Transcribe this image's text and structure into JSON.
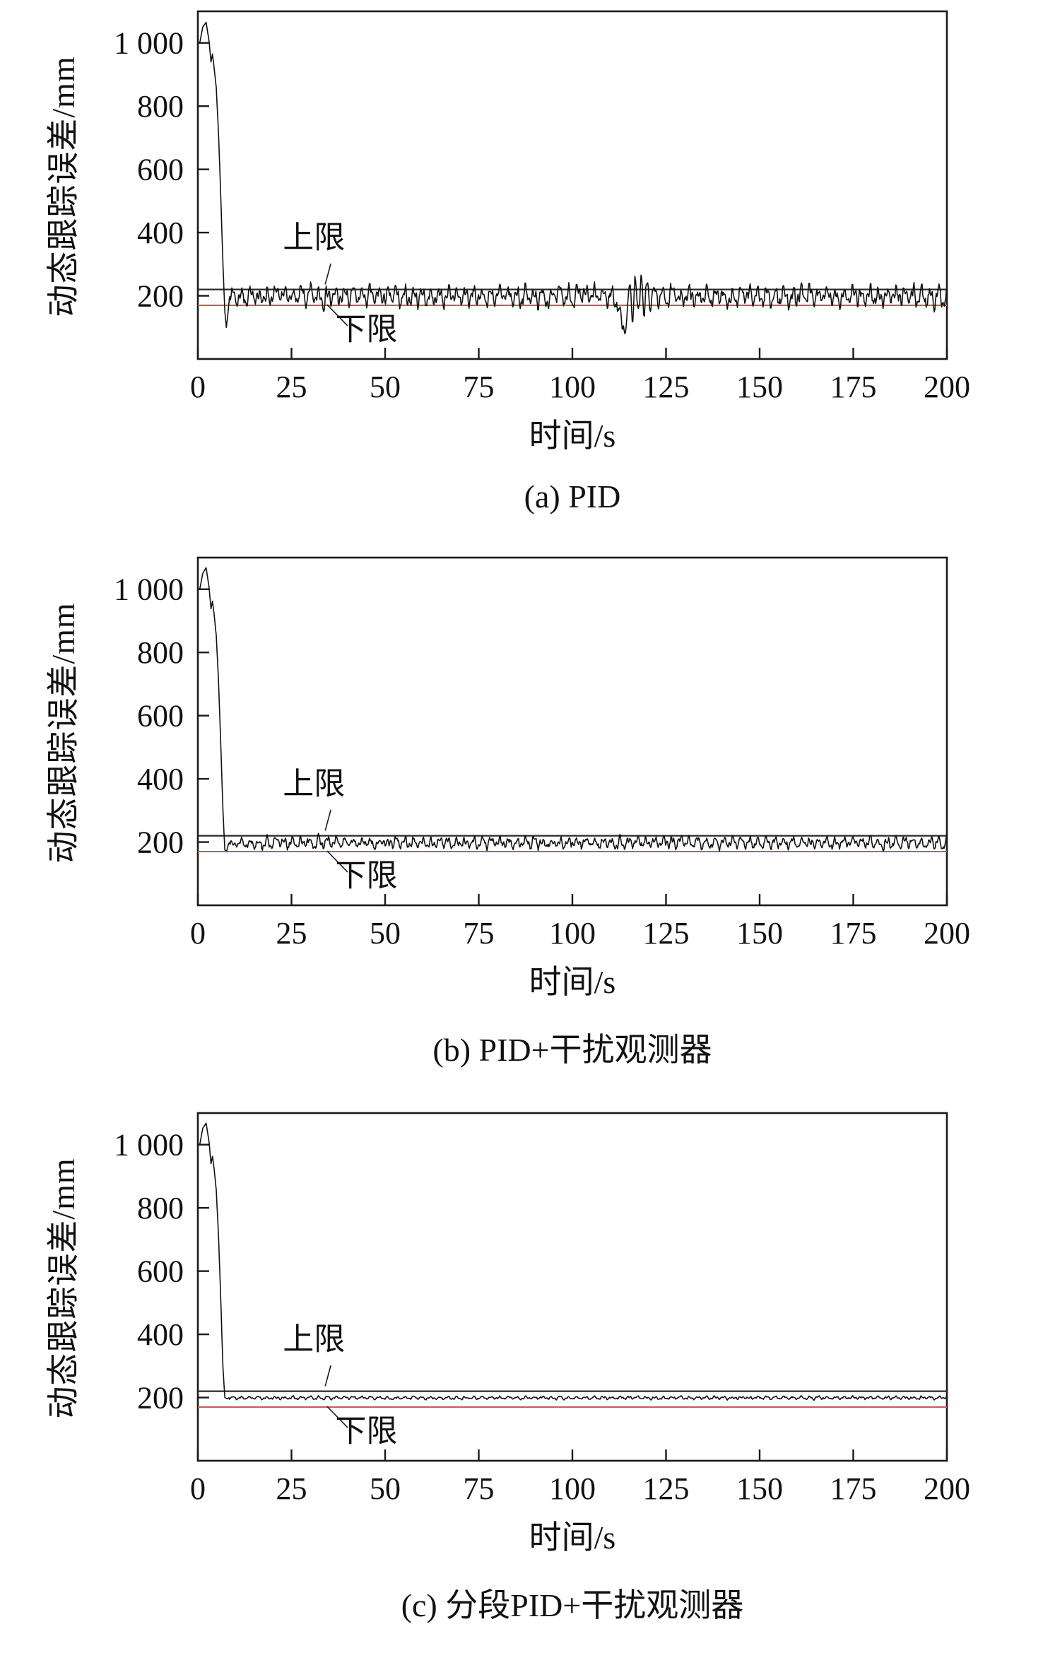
{
  "colors": {
    "axis": "#1a1a1a",
    "signal": "#111111",
    "upper_limit": "#2a2a2a",
    "lower_limit": "#d9534f"
  },
  "chart_data": [
    {
      "id": "a",
      "type": "line",
      "caption": "(a) PID",
      "xlabel": "时间/s",
      "ylabel": "动态跟踪误差/mm",
      "xlim": [
        0,
        200
      ],
      "ylim": [
        0,
        1100
      ],
      "grid": false,
      "legend": "none",
      "x_ticks": [
        {
          "value": 0,
          "label": "0"
        },
        {
          "value": 25,
          "label": "25"
        },
        {
          "value": 50,
          "label": "50"
        },
        {
          "value": 75,
          "label": "75"
        },
        {
          "value": 100,
          "label": "100"
        },
        {
          "value": 125,
          "label": "125"
        },
        {
          "value": 150,
          "label": "150"
        },
        {
          "value": 175,
          "label": "175"
        },
        {
          "value": 200,
          "label": "200"
        }
      ],
      "y_ticks": [
        {
          "value": 200,
          "label": "200"
        },
        {
          "value": 400,
          "label": "400"
        },
        {
          "value": 600,
          "label": "600"
        },
        {
          "value": 800,
          "label": "800"
        },
        {
          "value": 1000,
          "label": "1 000"
        }
      ],
      "upper_limit": {
        "value": 220,
        "label": "上限"
      },
      "lower_limit": {
        "value": 170,
        "label": "下限"
      },
      "upper_annotation": {
        "label": "上限",
        "tx": 31,
        "tv": 352,
        "leader": [
          [
            35.5,
            302
          ],
          [
            34,
            236
          ]
        ]
      },
      "lower_annotation": {
        "label": "下限",
        "tx": 45,
        "tv": 62,
        "leader": [
          [
            40,
            105
          ],
          [
            34.5,
            172
          ]
        ]
      },
      "series": {
        "name": "动态跟踪误差",
        "transient": [
          [
            0.5,
            1000
          ],
          [
            1.3,
            1050
          ],
          [
            2.2,
            1065
          ],
          [
            3.0,
            1005
          ],
          [
            3.5,
            940
          ],
          [
            3.9,
            965
          ],
          [
            4.3,
            925
          ],
          [
            4.9,
            860
          ],
          [
            5.5,
            720
          ],
          [
            6.1,
            520
          ],
          [
            6.7,
            300
          ],
          [
            7.2,
            150
          ],
          [
            7.6,
            100
          ],
          [
            8.0,
            140
          ],
          [
            8.4,
            190
          ],
          [
            8.7,
            205
          ]
        ],
        "steady": {
          "start_t": 8.7,
          "mean": 198,
          "amplitude": 38,
          "seed": 7,
          "disturbance": {
            "center": 118,
            "dip_center": 113.5,
            "dip_depth": 95,
            "burst_amp": 70,
            "width": 4
          }
        }
      }
    },
    {
      "id": "b",
      "type": "line",
      "caption": "(b) PID+干扰观测器",
      "xlabel": "时间/s",
      "ylabel": "动态跟踪误差/mm",
      "xlim": [
        0,
        200
      ],
      "ylim": [
        0,
        1100
      ],
      "grid": false,
      "legend": "none",
      "x_ticks": [
        {
          "value": 0,
          "label": "0"
        },
        {
          "value": 25,
          "label": "25"
        },
        {
          "value": 50,
          "label": "50"
        },
        {
          "value": 75,
          "label": "75"
        },
        {
          "value": 100,
          "label": "100"
        },
        {
          "value": 125,
          "label": "125"
        },
        {
          "value": 150,
          "label": "150"
        },
        {
          "value": 175,
          "label": "175"
        },
        {
          "value": 200,
          "label": "200"
        }
      ],
      "y_ticks": [
        {
          "value": 200,
          "label": "200"
        },
        {
          "value": 400,
          "label": "400"
        },
        {
          "value": 600,
          "label": "600"
        },
        {
          "value": 800,
          "label": "800"
        },
        {
          "value": 1000,
          "label": "1 000"
        }
      ],
      "upper_limit": {
        "value": 220,
        "label": "上限"
      },
      "lower_limit": {
        "value": 170,
        "label": "下限"
      },
      "upper_annotation": {
        "label": "上限",
        "tx": 31,
        "tv": 352,
        "leader": [
          [
            35.5,
            302
          ],
          [
            34,
            236
          ]
        ]
      },
      "lower_annotation": {
        "label": "下限",
        "tx": 45,
        "tv": 62,
        "leader": [
          [
            40,
            105
          ],
          [
            34.5,
            172
          ]
        ]
      },
      "series": {
        "name": "动态跟踪误差",
        "transient": [
          [
            0.5,
            1000
          ],
          [
            1.3,
            1050
          ],
          [
            2.2,
            1068
          ],
          [
            3.0,
            1005
          ],
          [
            3.5,
            938
          ],
          [
            3.9,
            962
          ],
          [
            4.3,
            925
          ],
          [
            4.9,
            855
          ],
          [
            5.5,
            715
          ],
          [
            6.1,
            515
          ],
          [
            6.7,
            300
          ],
          [
            7.2,
            175
          ],
          [
            7.7,
            172
          ],
          [
            8.2,
            195
          ],
          [
            8.6,
            200
          ]
        ],
        "steady": {
          "start_t": 8.6,
          "mean": 198,
          "amplitude": 22,
          "seed": 13,
          "disturbance": null
        }
      }
    },
    {
      "id": "c",
      "type": "line",
      "caption": "(c) 分段PID+干扰观测器",
      "xlabel": "时间/s",
      "ylabel": "动态跟踪误差/mm",
      "xlim": [
        0,
        200
      ],
      "ylim": [
        0,
        1100
      ],
      "grid": false,
      "legend": "none",
      "x_ticks": [
        {
          "value": 0,
          "label": "0"
        },
        {
          "value": 25,
          "label": "25"
        },
        {
          "value": 50,
          "label": "50"
        },
        {
          "value": 75,
          "label": "75"
        },
        {
          "value": 100,
          "label": "100"
        },
        {
          "value": 125,
          "label": "125"
        },
        {
          "value": 150,
          "label": "150"
        },
        {
          "value": 175,
          "label": "175"
        },
        {
          "value": 200,
          "label": "200"
        }
      ],
      "y_ticks": [
        {
          "value": 200,
          "label": "200"
        },
        {
          "value": 400,
          "label": "400"
        },
        {
          "value": 600,
          "label": "600"
        },
        {
          "value": 800,
          "label": "800"
        },
        {
          "value": 1000,
          "label": "1 000"
        }
      ],
      "upper_limit": {
        "value": 220,
        "label": "上限"
      },
      "lower_limit": {
        "value": 170,
        "label": "下限"
      },
      "upper_annotation": {
        "label": "上限",
        "tx": 31,
        "tv": 352,
        "leader": [
          [
            35.5,
            302
          ],
          [
            34,
            236
          ]
        ]
      },
      "lower_annotation": {
        "label": "下限",
        "tx": 45,
        "tv": 62,
        "leader": [
          [
            40,
            105
          ],
          [
            34.5,
            172
          ]
        ]
      },
      "series": {
        "name": "动态跟踪误差",
        "transient": [
          [
            0.5,
            1000
          ],
          [
            1.3,
            1052
          ],
          [
            2.2,
            1068
          ],
          [
            3.0,
            1008
          ],
          [
            3.5,
            940
          ],
          [
            3.9,
            963
          ],
          [
            4.3,
            928
          ],
          [
            4.9,
            858
          ],
          [
            5.5,
            718
          ],
          [
            6.1,
            515
          ],
          [
            6.7,
            295
          ],
          [
            7.2,
            200
          ],
          [
            7.8,
            196
          ],
          [
            8.4,
            200
          ]
        ],
        "steady": {
          "start_t": 8.4,
          "mean": 199,
          "amplitude": 6,
          "seed": 21,
          "disturbance": null
        }
      }
    }
  ]
}
